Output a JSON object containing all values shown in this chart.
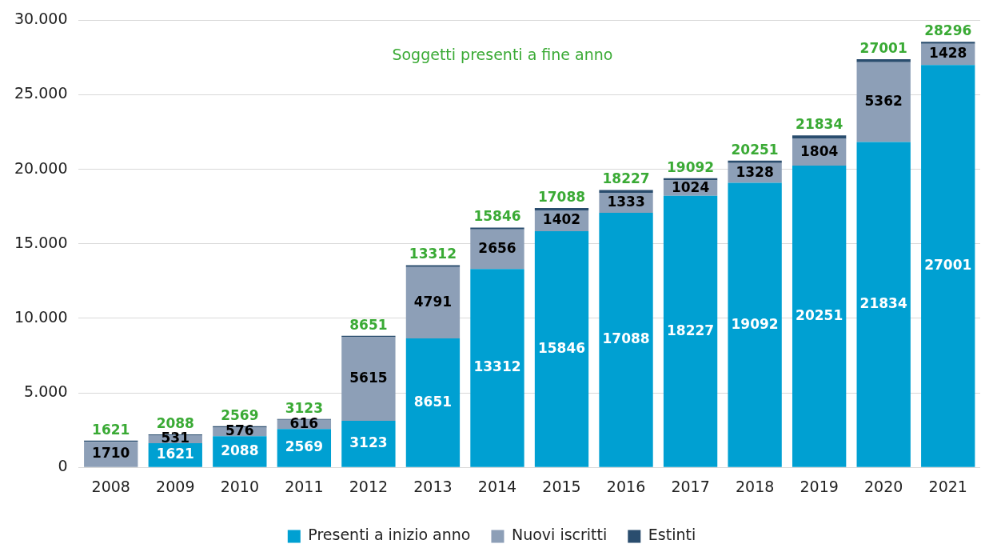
{
  "chart_data": {
    "type": "bar",
    "stacked": true,
    "categories": [
      "2008",
      "2009",
      "2010",
      "2011",
      "2012",
      "2013",
      "2014",
      "2015",
      "2016",
      "2017",
      "2018",
      "2019",
      "2020",
      "2021"
    ],
    "series": [
      {
        "name": "Presenti a inizio anno",
        "color": "#00a0d2",
        "values": [
          0,
          1621,
          2088,
          2569,
          3123,
          8651,
          13312,
          15846,
          17088,
          18227,
          19092,
          20251,
          21834,
          27001
        ],
        "value_labels": [
          null,
          "1621",
          "2088",
          "2569",
          "3123",
          "8651",
          "13312",
          "15846",
          "17088",
          "18227",
          "19092",
          "20251",
          "21834",
          "27001"
        ]
      },
      {
        "name": "Nuovi iscritti",
        "color": "#8d9fb7",
        "values": [
          1710,
          531,
          576,
          616,
          5615,
          4791,
          2656,
          1402,
          1333,
          1024,
          1328,
          1804,
          5362,
          1428
        ],
        "value_labels": [
          "1710",
          "531",
          "576",
          "616",
          "5615",
          "4791",
          "2656",
          "1402",
          "1333",
          "1024",
          "1328",
          "1804",
          "5362",
          "1428"
        ]
      },
      {
        "name": "Estinti",
        "color": "#2a4d6e",
        "values": [
          89,
          64,
          95,
          62,
          87,
          130,
          122,
          160,
          194,
          159,
          169,
          221,
          195,
          133
        ]
      }
    ],
    "annotations": [
      "Soggetti presenti a fine anno",
      {
        "text": "1621",
        "x": "2008",
        "y": 1799
      },
      {
        "text": "2088",
        "x": "2009",
        "y": 2216
      },
      {
        "text": "2569",
        "x": "2010",
        "y": 2759
      },
      {
        "text": "3123",
        "x": "2011",
        "y": 3247
      },
      {
        "text": "8651",
        "x": "2012",
        "y": 8825
      },
      {
        "text": "13312",
        "x": "2013",
        "y": 13572
      },
      {
        "text": "15846",
        "x": "2014",
        "y": 16090
      },
      {
        "text": "17088",
        "x": "2015",
        "y": 17408
      },
      {
        "text": "18227",
        "x": "2016",
        "y": 18615
      },
      {
        "text": "19092",
        "x": "2017",
        "y": 19410
      },
      {
        "text": "20251",
        "x": "2018",
        "y": 20589
      },
      {
        "text": "21834",
        "x": "2019",
        "y": 22276
      },
      {
        "text": "27001",
        "x": "2020",
        "y": 27391
      },
      {
        "text": "28296",
        "x": "2021",
        "y": 28562
      }
    ],
    "ylim": [
      0,
      30000
    ],
    "yticks": [
      0,
      {
        "value": 5000,
        "label": "5.000"
      },
      {
        "value": 10000,
        "label": "10.000"
      },
      {
        "value": 15000,
        "label": "15.000"
      },
      {
        "value": 20000,
        "label": "20.000"
      },
      {
        "value": 25000,
        "label": "25.000"
      },
      {
        "value": 30000,
        "label": "30.000"
      }
    ],
    "grid": "y",
    "legend": "bottom"
  }
}
